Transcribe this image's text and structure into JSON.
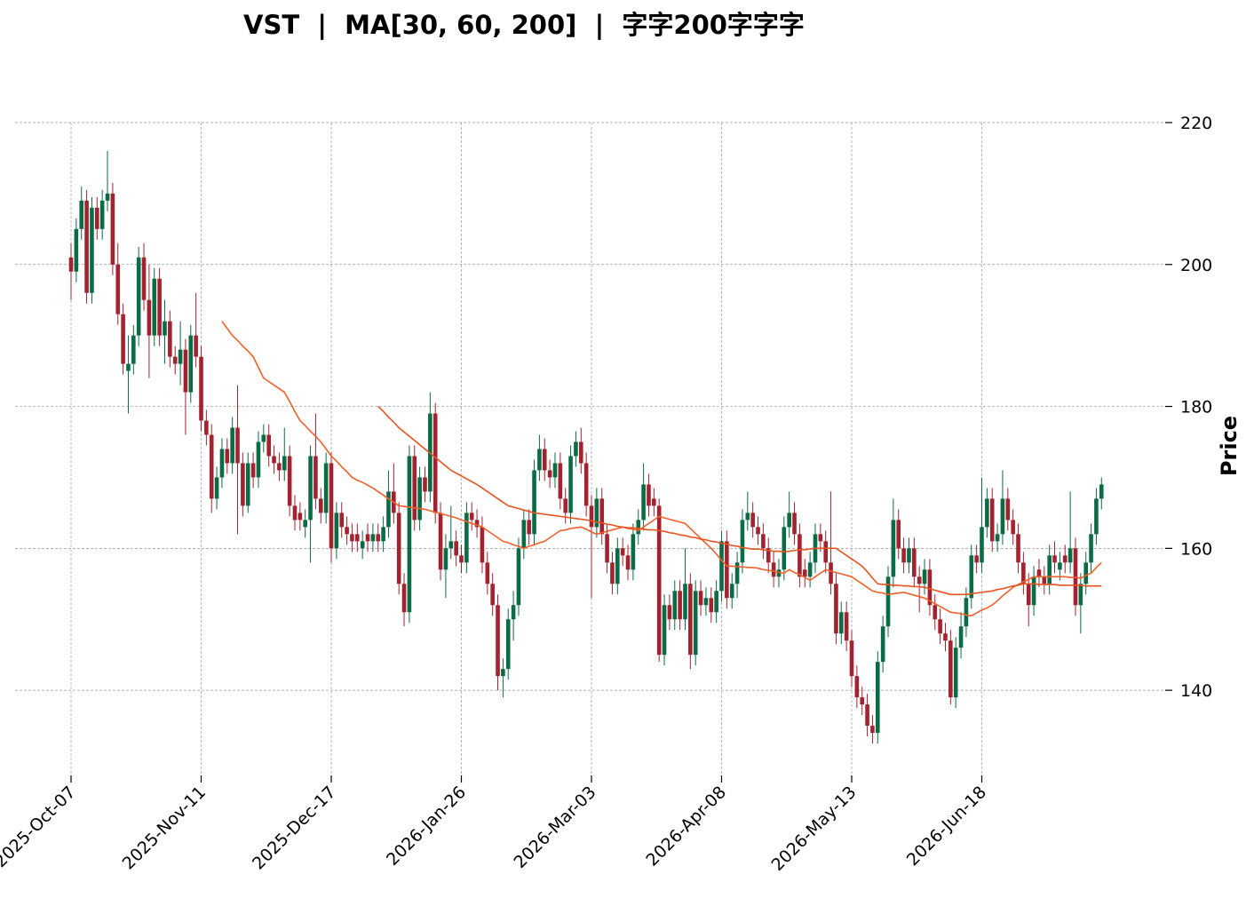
{
  "chart_data": {
    "type": "candlestick",
    "title": "VST  |  MA[30, 60, 200]  |  字字200字字字",
    "ylabel": "Price",
    "grid": true,
    "up_color": "#0b6b45",
    "down_color": "#a2232f",
    "categories": [
      "2025-Oct-07",
      null,
      null,
      null,
      null,
      null,
      null,
      null,
      null,
      null,
      null,
      null,
      null,
      null,
      null,
      null,
      null,
      null,
      null,
      null,
      null,
      null,
      null,
      null,
      null,
      "2025-Nov-11",
      null,
      null,
      null,
      null,
      null,
      null,
      null,
      null,
      null,
      null,
      null,
      null,
      null,
      null,
      null,
      null,
      null,
      null,
      null,
      null,
      null,
      null,
      null,
      null,
      "2025-Dec-17",
      null,
      null,
      null,
      null,
      null,
      null,
      null,
      null,
      null,
      null,
      null,
      null,
      null,
      null,
      null,
      null,
      null,
      null,
      null,
      null,
      null,
      null,
      null,
      null,
      "2026-Jan-26",
      null,
      null,
      null,
      null,
      null,
      null,
      null,
      null,
      null,
      null,
      null,
      null,
      null,
      null,
      null,
      null,
      null,
      null,
      null,
      null,
      null,
      null,
      null,
      null,
      "2026-Mar-03",
      null,
      null,
      null,
      null,
      null,
      null,
      null,
      null,
      null,
      null,
      null,
      null,
      null,
      null,
      null,
      null,
      null,
      null,
      null,
      null,
      null,
      null,
      null,
      null,
      "2026-Apr-08",
      null,
      null,
      null,
      null,
      null,
      null,
      null,
      null,
      null,
      null,
      null,
      null,
      null,
      null,
      null,
      null,
      null,
      null,
      null,
      null,
      null,
      null,
      null,
      null,
      "2026-May-13",
      null,
      null,
      null,
      null,
      null,
      null,
      null,
      null,
      null,
      null,
      null,
      null,
      null,
      null,
      null,
      null,
      null,
      null,
      null,
      null,
      null,
      null,
      null,
      null,
      "2026-Jun-18",
      null,
      null,
      null,
      null,
      null,
      null,
      null,
      null,
      null,
      null,
      null,
      null,
      null,
      null,
      null,
      null,
      null,
      null,
      null,
      null,
      null,
      null,
      null
    ],
    "open": [
      201,
      199,
      205,
      209,
      196,
      208,
      205,
      209,
      210,
      200,
      193,
      185,
      186,
      190,
      201,
      195,
      190,
      198,
      190,
      192,
      187,
      186,
      188,
      182,
      190,
      187,
      178,
      176,
      167,
      170,
      174,
      172,
      177,
      172,
      166,
      172,
      170,
      175,
      176,
      173,
      172,
      171,
      173,
      166,
      165,
      163,
      164,
      173,
      167,
      165,
      172,
      160,
      165,
      163,
      162,
      162,
      160,
      162,
      161,
      162,
      161,
      163,
      168,
      165,
      155,
      151,
      173,
      164,
      170,
      168,
      179,
      165,
      157,
      160,
      161,
      159,
      158,
      165,
      164,
      163,
      158,
      155,
      152,
      142,
      143,
      150,
      152,
      160,
      164,
      162,
      171,
      174,
      171,
      170,
      172,
      167,
      165,
      173,
      175,
      172,
      166,
      163,
      167,
      162,
      158,
      155,
      160,
      159,
      157,
      162,
      164,
      169,
      167,
      166,
      145,
      152,
      150,
      154,
      150,
      155,
      145,
      154,
      152,
      153,
      151,
      154,
      161,
      153,
      155,
      158,
      164,
      165,
      163,
      162,
      160,
      158,
      156,
      157,
      163,
      165,
      162,
      157,
      156,
      158,
      162,
      161,
      158,
      155,
      148,
      151,
      147,
      142,
      139,
      138,
      135,
      134,
      144,
      149,
      156,
      164,
      160,
      158,
      160,
      156,
      155,
      157,
      152,
      150,
      148,
      147,
      139,
      146,
      149,
      153,
      159,
      158,
      163,
      167,
      161,
      162,
      167,
      164,
      162,
      158,
      155,
      152,
      157,
      156,
      155,
      159,
      157,
      159,
      158,
      160,
      152,
      155,
      158,
      162,
      167
    ],
    "high": [
      203,
      206.5,
      211,
      210.5,
      209.5,
      209.5,
      210.5,
      216,
      211.5,
      203,
      194.5,
      190,
      191.5,
      202.5,
      203,
      200,
      199.5,
      199.5,
      195,
      193.5,
      188.5,
      192,
      189.5,
      191.5,
      196,
      188.5,
      179.5,
      177.5,
      171.5,
      175.5,
      175.5,
      178.5,
      183,
      173.5,
      173.5,
      173.5,
      176.5,
      177.5,
      177.5,
      174.5,
      173.5,
      177,
      174.5,
      167.5,
      166.5,
      165.5,
      174.5,
      179,
      168.5,
      173.5,
      173.5,
      166.5,
      166.5,
      164.5,
      163.5,
      163.5,
      162.5,
      163.5,
      163.5,
      163.5,
      164.5,
      171,
      172,
      166.5,
      156.5,
      174.5,
      174.5,
      171.5,
      171.5,
      182,
      180.5,
      166.5,
      162,
      166,
      162.5,
      160.5,
      166.5,
      166.5,
      165.5,
      164.5,
      159.5,
      156.5,
      153.5,
      144.5,
      151.5,
      154,
      161.5,
      165.5,
      165.5,
      172.5,
      176,
      175.5,
      172.5,
      173.5,
      173.5,
      168.5,
      174.5,
      176.5,
      177,
      173.5,
      167.5,
      168.5,
      168.5,
      163.5,
      159.5,
      161.5,
      161.5,
      160.5,
      163.5,
      165.5,
      172,
      170.5,
      168.5,
      167,
      153.5,
      153.5,
      155.5,
      155.5,
      160,
      156.5,
      155.5,
      155.5,
      154.5,
      154.5,
      155.5,
      162.5,
      162.5,
      156.5,
      159.5,
      165.5,
      168,
      166.5,
      164.5,
      163.5,
      161.5,
      159.5,
      158.5,
      164.5,
      168,
      166.5,
      163.5,
      158.5,
      159.5,
      163.5,
      163.5,
      162.5,
      168,
      156.5,
      152.5,
      152.5,
      148.5,
      143.5,
      140.5,
      139.5,
      136.5,
      145.5,
      150.5,
      157.5,
      167,
      165.5,
      161.5,
      161.5,
      161.5,
      157.5,
      158.5,
      158.5,
      153.5,
      151.5,
      149.5,
      148.5,
      147.5,
      151,
      154.5,
      160.5,
      160.5,
      170,
      168.5,
      168.5,
      163.5,
      171,
      168.5,
      165.5,
      163.5,
      159.5,
      156.5,
      157.5,
      158.5,
      157.5,
      160.5,
      161,
      159.5,
      160.5,
      168,
      161.5,
      156.5,
      159.5,
      163.5,
      168.5,
      170
    ],
    "low": [
      195,
      197.5,
      203.5,
      194.5,
      194.5,
      203.5,
      203.5,
      207.5,
      198.5,
      191.5,
      184.5,
      179,
      184.5,
      188.5,
      193.5,
      184,
      188.5,
      188.5,
      186,
      185.5,
      184.5,
      183,
      176,
      180.5,
      185.5,
      176.5,
      174.5,
      165,
      165.5,
      168.5,
      170.5,
      170.5,
      162,
      164.5,
      165,
      168.5,
      168.5,
      173.5,
      171.5,
      170.5,
      169.5,
      169.5,
      164.5,
      162.5,
      162.5,
      161.5,
      158,
      165.5,
      163.5,
      163.5,
      158,
      158.5,
      161.5,
      160.5,
      159.5,
      159.5,
      158.5,
      159.5,
      159.5,
      159.5,
      159.5,
      161.5,
      163.5,
      153.5,
      149,
      149.5,
      162.5,
      162.5,
      166.5,
      166.5,
      163.5,
      155.5,
      153,
      158.5,
      157.5,
      156.5,
      156.5,
      162.5,
      161.5,
      156.5,
      153.5,
      150.5,
      140,
      139,
      141.5,
      147,
      150.5,
      158.5,
      160.5,
      160.5,
      169.5,
      169.5,
      168.5,
      168.5,
      165.5,
      163.5,
      163.5,
      171.5,
      170.5,
      164.5,
      153,
      161.5,
      160.5,
      156.5,
      153.5,
      153.5,
      157.5,
      155.5,
      155.5,
      160.5,
      162.5,
      164.5,
      164.5,
      144,
      143.5,
      148.5,
      148.5,
      148.5,
      148.5,
      143,
      143.5,
      150.5,
      150.5,
      149.5,
      149.5,
      152.5,
      151.5,
      151.5,
      153,
      156.5,
      162.5,
      161.5,
      160.5,
      158.5,
      156.5,
      154.5,
      154.5,
      155.5,
      161.5,
      160.5,
      154.5,
      154.5,
      154.5,
      156.5,
      159.5,
      156.5,
      153.5,
      146.5,
      146.5,
      145.5,
      140.5,
      137.5,
      136.5,
      133.5,
      132.5,
      132.5,
      142.5,
      147.5,
      154.5,
      158.5,
      156.5,
      156.5,
      154.5,
      151,
      153.5,
      150.5,
      148.5,
      146.5,
      145.5,
      138,
      137.5,
      144.5,
      147.5,
      151.5,
      156.5,
      156.5,
      161.5,
      159.5,
      159.5,
      160.5,
      162.5,
      160.5,
      156.5,
      153.5,
      149,
      150.5,
      154.5,
      153.5,
      153.5,
      156.5,
      155.5,
      156.5,
      156.5,
      150.5,
      148,
      153.5,
      156.5,
      160.5,
      165.5
    ],
    "close": [
      199,
      205,
      209,
      196,
      208,
      205,
      209,
      210,
      200,
      193,
      186,
      186,
      190,
      201,
      195,
      190,
      198,
      190,
      192,
      187,
      186,
      188,
      182,
      190,
      187,
      178,
      176,
      167,
      170,
      174,
      172,
      177,
      172,
      166,
      172,
      170,
      175,
      176,
      173,
      172,
      171,
      173,
      166,
      164,
      164,
      164,
      173,
      167,
      165,
      172,
      160,
      165,
      163,
      162,
      161,
      161,
      161,
      161,
      162,
      161,
      163,
      168,
      165,
      155,
      151,
      173,
      164,
      170,
      168,
      179,
      165,
      157,
      160,
      161,
      159,
      158,
      165,
      164,
      163,
      158,
      155,
      152,
      142,
      143,
      150,
      152,
      160,
      164,
      162,
      171,
      174,
      171,
      170,
      172,
      167,
      165,
      173,
      175,
      172,
      166,
      163,
      167,
      162,
      158,
      155,
      160,
      159,
      157,
      162,
      164,
      169,
      166,
      166,
      145,
      152,
      150,
      154,
      150,
      155,
      145,
      154,
      152,
      153,
      151,
      154,
      161,
      153,
      155,
      158,
      164,
      165,
      163,
      162,
      160,
      158,
      156,
      157,
      163,
      165,
      162,
      156,
      156,
      158,
      162,
      161,
      158,
      155,
      148,
      151,
      147,
      142,
      139,
      138,
      135,
      134,
      144,
      149,
      156,
      164,
      160,
      158,
      160,
      156,
      155,
      157,
      152,
      150,
      148,
      147,
      139,
      146,
      149,
      153,
      159,
      158,
      163,
      167,
      161,
      162,
      167,
      164,
      162,
      158,
      155,
      152,
      156,
      156,
      155,
      159,
      158,
      158,
      158,
      160,
      152,
      155,
      158,
      162,
      167,
      169
    ],
    "moving_averages": [
      {
        "color": "#f0602a",
        "values": [
          null,
          null,
          null,
          null,
          null,
          null,
          null,
          null,
          null,
          null,
          null,
          null,
          null,
          null,
          null,
          null,
          null,
          null,
          null,
          null,
          null,
          null,
          null,
          null,
          null,
          null,
          null,
          null,
          null,
          192.0,
          191.0,
          190.0,
          189.3,
          188.5,
          187.8,
          187.0,
          185.5,
          184.0,
          183.5,
          183.0,
          182.5,
          182.0,
          180.7,
          179.3,
          178.0,
          177.3,
          176.5,
          175.8,
          175.0,
          174.0,
          173.0,
          172.3,
          171.5,
          170.8,
          170.0,
          169.6,
          169.3,
          168.9,
          168.5,
          168.0,
          167.5,
          167.0,
          166.5,
          166.0,
          165.9,
          165.8,
          165.7,
          165.6,
          165.5,
          165.3,
          165.1,
          164.9,
          164.7,
          164.5,
          164.3,
          164.0,
          163.8,
          163.5,
          163.3,
          163.0,
          162.5,
          162.0,
          161.5,
          161.0,
          160.8,
          160.5,
          160.3,
          160.0,
          160.3,
          160.5,
          160.8,
          161.0,
          161.5,
          162.0,
          162.5,
          162.6,
          162.8,
          162.9,
          163.0,
          162.7,
          162.3,
          162.0,
          162.2,
          162.4,
          162.6,
          162.8,
          163.0,
          162.8,
          162.7,
          162.5,
          163.0,
          163.5,
          164.0,
          164.5,
          164.3,
          164.1,
          163.9,
          163.7,
          163.5,
          162.8,
          162.1,
          161.4,
          160.7,
          160.0,
          159.2,
          158.3,
          157.5,
          157.5,
          157.4,
          157.4,
          157.3,
          157.3,
          157.2,
          157.0,
          156.9,
          156.8,
          156.6,
          156.5,
          157.0,
          156.6,
          156.3,
          155.9,
          155.5,
          156.0,
          156.5,
          157.0,
          156.8,
          156.6,
          156.4,
          156.2,
          156.0,
          155.5,
          155.0,
          154.5,
          154.0,
          153.8,
          153.7,
          153.5,
          153.6,
          153.7,
          153.8,
          153.6,
          153.4,
          153.2,
          153.0,
          152.6,
          152.2,
          151.8,
          151.4,
          151.0,
          150.9,
          150.8,
          150.6,
          150.5,
          150.9,
          151.3,
          151.6,
          152.0,
          152.6,
          153.3,
          153.9,
          154.5,
          154.9,
          155.3,
          155.6,
          156.0,
          156.0,
          156.0,
          156.0,
          156.0,
          156.0,
          156.0,
          155.9,
          155.9,
          155.8,
          156.2,
          156.5,
          157.3,
          158.0
        ]
      },
      {
        "color": "#e8531f",
        "values": [
          null,
          null,
          null,
          null,
          null,
          null,
          null,
          null,
          null,
          null,
          null,
          null,
          null,
          null,
          null,
          null,
          null,
          null,
          null,
          null,
          null,
          null,
          null,
          null,
          null,
          null,
          null,
          null,
          null,
          null,
          null,
          null,
          null,
          null,
          null,
          null,
          null,
          null,
          null,
          null,
          null,
          null,
          null,
          null,
          null,
          null,
          null,
          null,
          null,
          null,
          null,
          null,
          null,
          null,
          null,
          null,
          null,
          null,
          null,
          180.0,
          179.3,
          178.5,
          177.8,
          177.0,
          176.4,
          175.8,
          175.2,
          174.6,
          174.0,
          173.4,
          172.8,
          172.2,
          171.6,
          171.0,
          170.6,
          170.2,
          169.8,
          169.4,
          169.0,
          168.5,
          168.0,
          167.5,
          167.0,
          166.5,
          166.0,
          165.8,
          165.6,
          165.4,
          165.2,
          165.0,
          164.9,
          164.8,
          164.7,
          164.6,
          164.5,
          164.4,
          164.3,
          164.2,
          164.1,
          164.0,
          163.9,
          163.7,
          163.6,
          163.4,
          163.3,
          163.1,
          163.0,
          162.9,
          162.9,
          162.8,
          162.7,
          162.6,
          162.6,
          162.5,
          162.4,
          162.2,
          162.1,
          161.9,
          161.8,
          161.6,
          161.5,
          161.3,
          161.2,
          161.0,
          160.9,
          160.7,
          160.6,
          160.4,
          160.3,
          160.1,
          160.0,
          159.9,
          159.9,
          159.8,
          159.7,
          159.6,
          159.6,
          159.5,
          159.6,
          159.7,
          159.8,
          159.8,
          159.9,
          160.0,
          160.0,
          160.0,
          160.0,
          160.0,
          159.5,
          159.0,
          158.5,
          158.0,
          157.5,
          156.7,
          155.8,
          155.0,
          154.9,
          154.9,
          154.8,
          154.8,
          154.7,
          154.7,
          154.6,
          154.6,
          154.5,
          154.3,
          154.1,
          153.9,
          153.7,
          153.5,
          153.5,
          153.5,
          153.5,
          153.6,
          153.7,
          153.8,
          153.9,
          154.0,
          154.2,
          154.3,
          154.5,
          154.7,
          154.8,
          155.0,
          155.0,
          155.0,
          154.9,
          154.9,
          154.9,
          154.9,
          154.8,
          154.8,
          154.8,
          154.8,
          154.8,
          154.7,
          154.7,
          154.7,
          154.7
        ]
      }
    ],
    "ylim": [
      128,
      221
    ],
    "yticks": [
      140,
      160,
      180,
      200,
      220
    ]
  }
}
